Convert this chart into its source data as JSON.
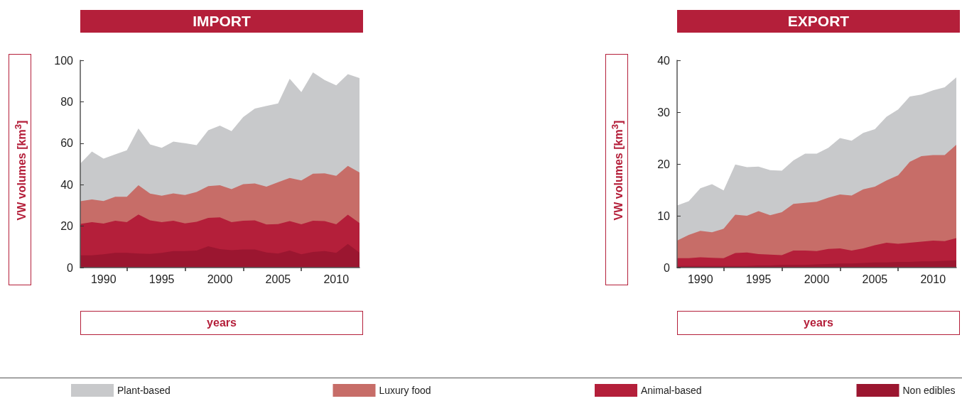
{
  "chart_data": [
    {
      "type": "area",
      "title": "IMPORT",
      "xlabel": "years",
      "ylabel": "VW volumes [km$^{3}$]",
      "stacked": true,
      "legend": "bottom",
      "grid": false,
      "x": [
        1988,
        1989,
        1990,
        1991,
        1992,
        1993,
        1994,
        1995,
        1996,
        1997,
        1998,
        1999,
        2000,
        2001,
        2002,
        2003,
        2004,
        2005,
        2006,
        2007,
        2008,
        2009,
        2010,
        2011,
        2012
      ],
      "xlim": [
        1988,
        2012
      ],
      "xticks": [
        1990,
        1995,
        2000,
        2005,
        2010,
        {
          "value": 1992,
          "label": null
        },
        {
          "value": 1997,
          "label": null
        },
        {
          "value": 2002,
          "label": null
        },
        {
          "value": 2007,
          "label": null
        }
      ],
      "ylim": [
        0,
        100
      ],
      "yticks": [
        0,
        20,
        40,
        60,
        80,
        100
      ],
      "series": [
        {
          "name": "Non edibles",
          "color": "#9b1630",
          "values": [
            5.9,
            5.9,
            6.4,
            7.1,
            7.1,
            6.8,
            6.6,
            7.1,
            8,
            8,
            8.2,
            10.3,
            8.9,
            8.4,
            8.7,
            8.7,
            7.3,
            6.8,
            8.2,
            6.4,
            7.5,
            8,
            7.1,
            11.4,
            7.2
          ]
        },
        {
          "name": "Animal-based",
          "color": "#b41f3a",
          "values": [
            15.2,
            16,
            14.8,
            15.5,
            14.8,
            18.8,
            16.2,
            14.8,
            14.6,
            13.3,
            13.9,
            13.7,
            15.3,
            13.5,
            13.9,
            14.1,
            13.5,
            14.2,
            14.2,
            14.5,
            15.1,
            14.4,
            13.8,
            14.1,
            14.3
          ]
        },
        {
          "name": "Luxury food",
          "color": "#c76d68",
          "values": [
            10.9,
            11,
            10.9,
            11.6,
            12.3,
            14.1,
            12.9,
            12.8,
            13.2,
            13.7,
            14.4,
            15.3,
            15.5,
            15.9,
            17.6,
            17.8,
            18.2,
            20.2,
            20.8,
            21.1,
            22.7,
            23.1,
            23.4,
            23.6,
            24.4
          ]
        },
        {
          "name": "Plant-based",
          "color": "#c8c9cb",
          "values": [
            18.2,
            23.1,
            20.5,
            20.4,
            22.4,
            27.4,
            23.7,
            23.1,
            25,
            25,
            22.6,
            27,
            28.8,
            28,
            32.4,
            36.1,
            39,
            38,
            47.9,
            42.7,
            48.9,
            45,
            43.6,
            44.2,
            45.5
          ]
        }
      ]
    },
    {
      "type": "area",
      "title": "EXPORT",
      "xlabel": "years",
      "ylabel": "VW volumes [km$^{3}$]",
      "stacked": true,
      "grid": false,
      "x": [
        1988,
        1989,
        1990,
        1991,
        1992,
        1993,
        1994,
        1995,
        1996,
        1997,
        1998,
        1999,
        2000,
        2001,
        2002,
        2003,
        2004,
        2005,
        2006,
        2007,
        2008,
        2009,
        2010,
        2011,
        2012
      ],
      "xlim": [
        1988,
        2012
      ],
      "xticks": [
        1990,
        1995,
        2000,
        2005,
        2010,
        {
          "value": 1992,
          "label": null
        },
        {
          "value": 1997,
          "label": null
        },
        {
          "value": 2002,
          "label": null
        },
        {
          "value": 2007,
          "label": null
        }
      ],
      "ylim": [
        0,
        40
      ],
      "yticks": [
        0,
        10,
        20,
        30,
        40
      ],
      "series": [
        {
          "color": "#9b1630",
          "values": [
            0.3,
            0.3,
            0.3,
            0.3,
            0.3,
            0.3,
            0.3,
            0.4,
            0.4,
            0.5,
            0.5,
            0.5,
            0.6,
            0.7,
            0.8,
            0.8,
            0.9,
            1,
            1,
            1.1,
            1.1,
            1.2,
            1.2,
            1.3,
            1.4
          ]
        },
        {
          "color": "#b41f3a",
          "values": [
            1.5,
            1.5,
            1.7,
            1.6,
            1.5,
            2.5,
            2.6,
            2.2,
            2.1,
            1.9,
            2.8,
            2.8,
            2.6,
            2.9,
            2.9,
            2.5,
            2.8,
            3.3,
            3.8,
            3.5,
            3.7,
            3.8,
            4,
            3.8,
            4.3
          ]
        },
        {
          "color": "#c76d68",
          "values": [
            3.4,
            4.5,
            5.1,
            4.9,
            5.7,
            7.4,
            7.1,
            8.3,
            7.6,
            8.3,
            9,
            9.2,
            9.5,
            9.9,
            10.4,
            10.6,
            11.4,
            11.3,
            12,
            13.2,
            15.6,
            16.5,
            16.5,
            16.6,
            18
          ]
        },
        {
          "color": "#c8c9cb",
          "values": [
            6.8,
            6.5,
            8.2,
            9.3,
            7.4,
            9.7,
            9.4,
            8.6,
            8.7,
            8,
            8.4,
            9.5,
            9.3,
            9.6,
            10.9,
            10.6,
            10.9,
            11.1,
            12.3,
            12.7,
            12.6,
            11.9,
            12.5,
            13.1,
            13
          ]
        }
      ]
    }
  ]
}
